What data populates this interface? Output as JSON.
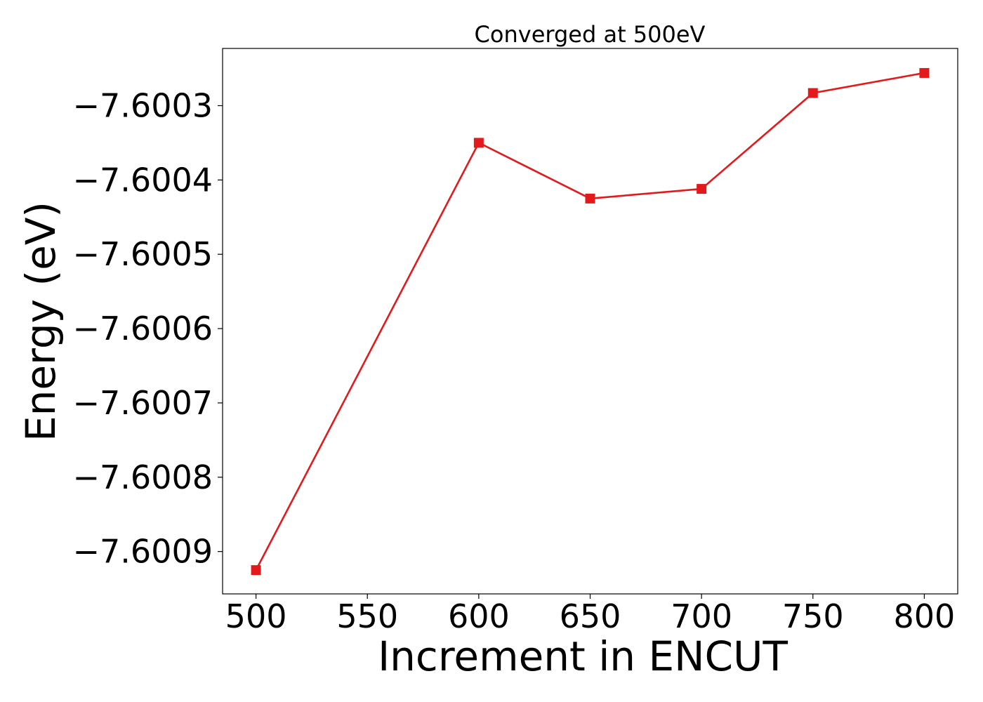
{
  "chart_data": {
    "type": "line",
    "title": "Converged at 500eV",
    "xlabel": "Increment in ENCUT",
    "ylabel": "Energy (eV)",
    "x": [
      500,
      600,
      650,
      700,
      750,
      800
    ],
    "series": [
      {
        "values": [
          -7.600925,
          -7.60035,
          -7.600425,
          -7.600412,
          -7.600283,
          -7.600256
        ],
        "color": "#e31a1c",
        "marker": "square"
      }
    ],
    "xticks": [
      500,
      550,
      600,
      650,
      700,
      750,
      800
    ],
    "xtick_labels": [
      "500",
      "550",
      "600",
      "650",
      "700",
      "750",
      "800"
    ],
    "yticks": [
      -7.6003,
      -7.6004,
      -7.6005,
      -7.6006,
      -7.6007,
      -7.6008,
      -7.6009
    ],
    "ytick_labels": [
      "−7.6003",
      "−7.6004",
      "−7.6005",
      "−7.6006",
      "−7.6007",
      "−7.6008",
      "−7.6009"
    ],
    "xlim": [
      485,
      815
    ],
    "ylim": [
      -7.600957,
      -7.600223
    ],
    "grid": false,
    "legend": false
  }
}
